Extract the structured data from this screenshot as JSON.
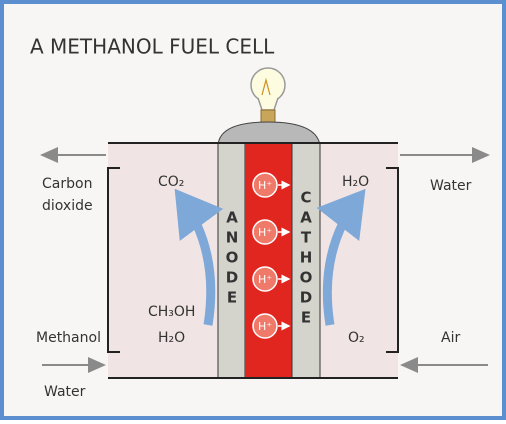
{
  "title": "A METHANOL FUEL CELL",
  "left": {
    "top_label": [
      "Carbon",
      "dioxide"
    ],
    "top_gas": "CO₂",
    "fuel": [
      "CH₃OH",
      "H₂O"
    ],
    "side_label": "Methanol",
    "bottom_label": "Water"
  },
  "right": {
    "top_gas": "H₂O",
    "top_label": "Water",
    "bottom_gas": "O₂",
    "side_label": "Air"
  },
  "anode": [
    "A",
    "N",
    "O",
    "D",
    "E"
  ],
  "cathode": [
    "C",
    "A",
    "T",
    "H",
    "O",
    "D",
    "E"
  ],
  "protons": [
    "H⁺",
    "H⁺",
    "H⁺",
    "H⁺"
  ]
}
